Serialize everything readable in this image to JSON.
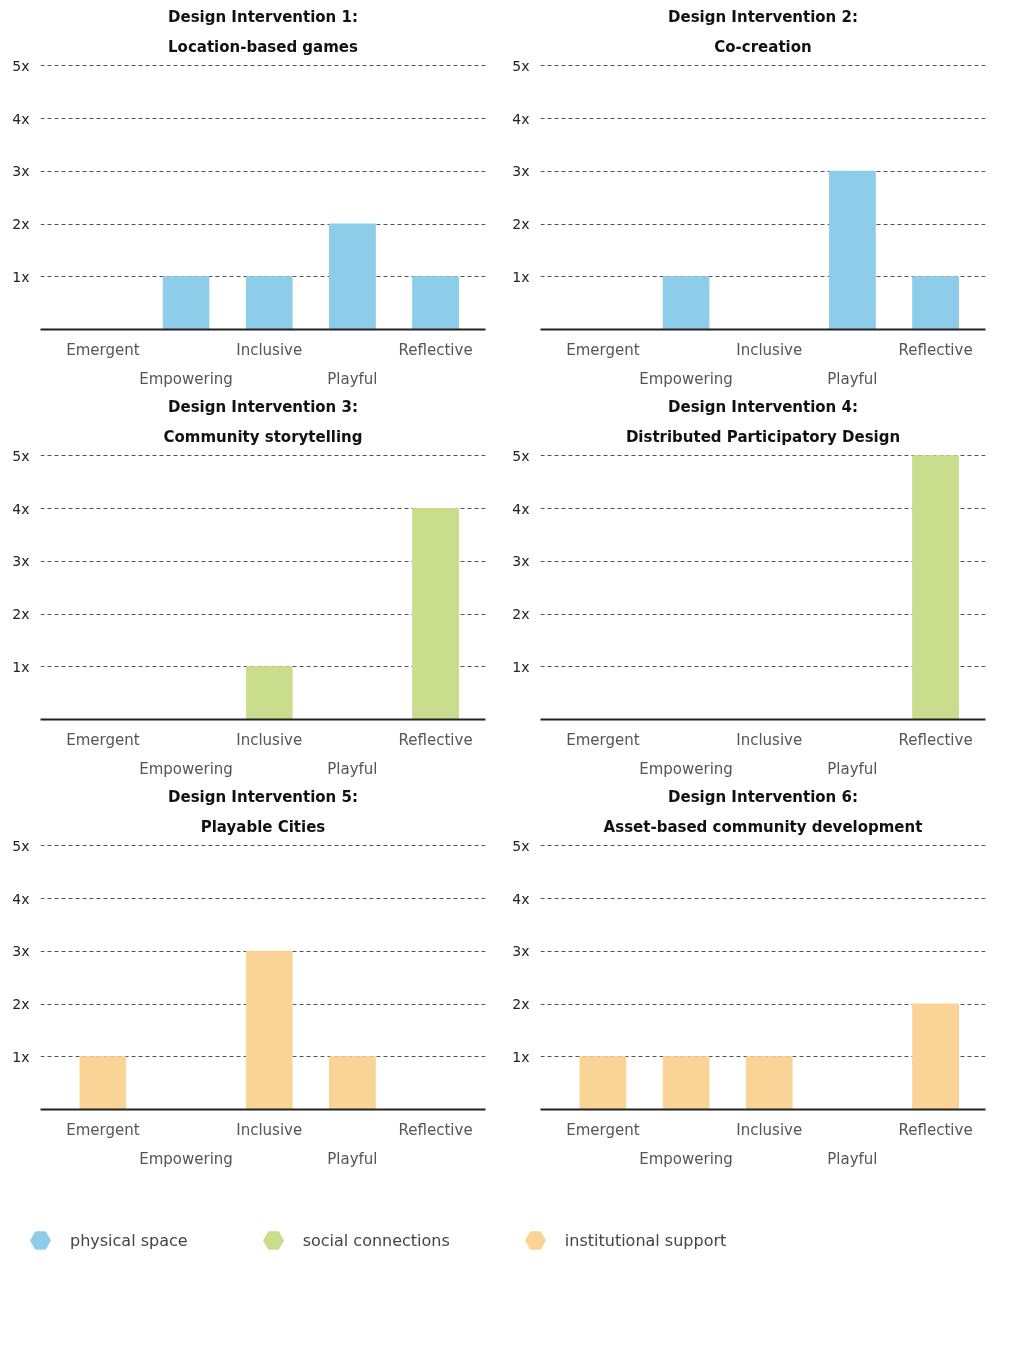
{
  "chart_data": [
    {
      "type": "bar",
      "title": "Design Intervention 1:",
      "subtitle": "Location-based games",
      "categories": [
        "Emergent",
        "Empowering",
        "Inclusive",
        "Playful",
        "Reflective"
      ],
      "series": [
        {
          "name": "physical space",
          "color": "#8ecdea",
          "values": [
            0,
            1,
            1,
            2,
            1
          ]
        }
      ],
      "ylim": [
        0,
        5
      ],
      "yticks": [
        {
          "value": 1,
          "label": "1x"
        },
        {
          "value": 2,
          "label": "2x"
        },
        {
          "value": 3,
          "label": "3x"
        },
        {
          "value": 4,
          "label": "4x"
        },
        {
          "value": 5,
          "label": "5x"
        }
      ],
      "grid": "y",
      "legend": "bottom"
    },
    {
      "type": "bar",
      "title": "Design Intervention 2:",
      "subtitle": "Co-creation",
      "categories": [
        "Emergent",
        "Empowering",
        "Inclusive",
        "Playful",
        "Reflective"
      ],
      "series": [
        {
          "color": "#8ecdea",
          "values": [
            0,
            1,
            0,
            3,
            1
          ]
        }
      ],
      "ylim": [
        0,
        5
      ],
      "yticks": [
        {
          "value": 1,
          "label": "1x"
        },
        {
          "value": 2,
          "label": "2x"
        },
        {
          "value": 3,
          "label": "3x"
        },
        {
          "value": 4,
          "label": "4x"
        },
        {
          "value": 5,
          "label": "5x"
        }
      ],
      "grid": "y"
    },
    {
      "type": "bar",
      "title": "Design Intervention 3:",
      "subtitle": "Community storytelling",
      "categories": [
        "Emergent",
        "Empowering",
        "Inclusive",
        "Playful",
        "Reflective"
      ],
      "series": [
        {
          "name": "social connections",
          "color": "#c9dd8c",
          "values": [
            0,
            0,
            1,
            0,
            4
          ]
        }
      ],
      "ylim": [
        0,
        5
      ],
      "yticks": [
        {
          "value": 1,
          "label": "1x"
        },
        {
          "value": 2,
          "label": "2x"
        },
        {
          "value": 3,
          "label": "3x"
        },
        {
          "value": 4,
          "label": "4x"
        },
        {
          "value": 5,
          "label": "5x"
        }
      ],
      "grid": "y",
      "legend": "bottom"
    },
    {
      "type": "bar",
      "title": "Design Intervention 4:",
      "subtitle": "Distributed Participatory Design",
      "categories": [
        "Emergent",
        "Empowering",
        "Inclusive",
        "Playful",
        "Reflective"
      ],
      "series": [
        {
          "color": "#c9dd8c",
          "values": [
            0,
            0,
            0,
            0,
            5
          ]
        }
      ],
      "ylim": [
        0,
        5
      ],
      "yticks": [
        {
          "value": 1,
          "label": "1x"
        },
        {
          "value": 2,
          "label": "2x"
        },
        {
          "value": 3,
          "label": "3x"
        },
        {
          "value": 4,
          "label": "4x"
        },
        {
          "value": 5,
          "label": "5x"
        }
      ],
      "grid": "y"
    },
    {
      "type": "bar",
      "title": "Design Intervention 5:",
      "subtitle": "Playable Cities",
      "categories": [
        "Emergent",
        "Empowering",
        "Inclusive",
        "Playful",
        "Reflective"
      ],
      "series": [
        {
          "name": "institutional support",
          "color": "#f9d496",
          "values": [
            1,
            0,
            3,
            1,
            0
          ]
        }
      ],
      "ylim": [
        0,
        5
      ],
      "yticks": [
        {
          "value": 1,
          "label": "1x"
        },
        {
          "value": 2,
          "label": "2x"
        },
        {
          "value": 3,
          "label": "3x"
        },
        {
          "value": 4,
          "label": "4x"
        },
        {
          "value": 5,
          "label": "5x"
        }
      ],
      "grid": "y",
      "legend": "bottom"
    },
    {
      "type": "bar",
      "title": "Design Intervention 6:",
      "subtitle": "Asset-based community development",
      "categories": [
        "Emergent",
        "Empowering",
        "Inclusive",
        "Playful",
        "Reflective"
      ],
      "series": [
        {
          "color": "#f9d496",
          "values": [
            1,
            1,
            1,
            0,
            2
          ]
        }
      ],
      "ylim": [
        0,
        5
      ],
      "yticks": [
        {
          "value": 1,
          "label": "1x"
        },
        {
          "value": 2,
          "label": "2x"
        },
        {
          "value": 3,
          "label": "3x"
        },
        {
          "value": 4,
          "label": "4x"
        },
        {
          "value": 5,
          "label": "5x"
        }
      ],
      "grid": "y"
    }
  ]
}
